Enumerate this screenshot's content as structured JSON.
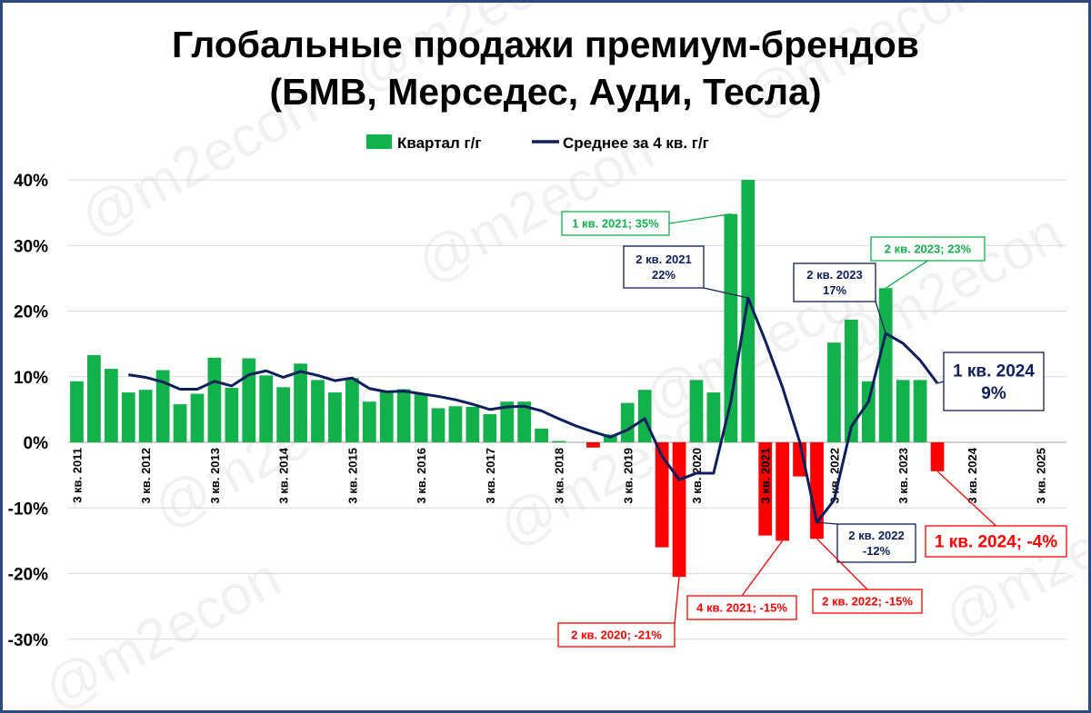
{
  "title_line1": "Глобальные продажи премиум-брендов",
  "title_line2": "(БМВ, Мерседес, Ауди, Тесла)",
  "watermark": "@m2econ",
  "colors": {
    "positive": "#12b14b",
    "negative": "#ff0000",
    "line": "#0d1f5c",
    "grid": "#d9d9d9",
    "frame": "#2e4a7d"
  },
  "chart_data": {
    "type": "bar",
    "ylim": [
      -30,
      40
    ],
    "yticks": [
      -30,
      -20,
      -10,
      0,
      10,
      20,
      30,
      40
    ],
    "ytick_labels": [
      "-30%",
      "-20%",
      "-10%",
      "0%",
      "10%",
      "20%",
      "30%",
      "40%"
    ],
    "grid": true,
    "legend_position": "top",
    "tick_labels": [
      {
        "index": 0,
        "label": "3 кв. 2011"
      },
      {
        "index": 4,
        "label": "3 кв. 2012"
      },
      {
        "index": 8,
        "label": "3 кв. 2013"
      },
      {
        "index": 12,
        "label": "3 кв. 2014"
      },
      {
        "index": 16,
        "label": "3 кв. 2015"
      },
      {
        "index": 20,
        "label": "3 кв. 2016"
      },
      {
        "index": 24,
        "label": "3 кв. 2017"
      },
      {
        "index": 28,
        "label": "3 кв. 2018"
      },
      {
        "index": 32,
        "label": "3 кв. 2019"
      },
      {
        "index": 36,
        "label": "3 кв. 2020"
      },
      {
        "index": 40,
        "label": "3 кв. 2021"
      },
      {
        "index": 44,
        "label": "3 кв. 2022"
      },
      {
        "index": 48,
        "label": "3 кв. 2023"
      },
      {
        "index": 52,
        "label": "3 кв. 2024"
      },
      {
        "index": 56,
        "label": "3 кв. 2025"
      }
    ],
    "n_slots": 58,
    "series": [
      {
        "name": "Квартал г/г",
        "kind": "bar",
        "values": [
          9.3,
          13.3,
          11.2,
          7.6,
          8.0,
          11.0,
          5.8,
          7.4,
          12.9,
          8.3,
          12.8,
          10.2,
          8.4,
          12.0,
          9.5,
          7.6,
          9.8,
          6.2,
          7.7,
          8.1,
          7.4,
          5.2,
          5.5,
          5.4,
          4.3,
          6.2,
          6.2,
          2.1,
          0.2,
          0.0,
          -0.8,
          1.2,
          6.0,
          8.0,
          -16.0,
          -20.5,
          9.5,
          7.6,
          34.8,
          40.0,
          -14.2,
          -15.0,
          -5.2,
          -14.7,
          15.2,
          18.7,
          9.3,
          23.5,
          9.5,
          9.5,
          -4.4,
          null,
          null,
          null,
          null,
          null,
          null,
          null
        ]
      },
      {
        "name": "Среднее за 4 кв. г/г",
        "kind": "line",
        "values": [
          null,
          null,
          null,
          10.3,
          9.9,
          9.2,
          8.1,
          8.1,
          9.3,
          8.6,
          10.3,
          10.9,
          9.9,
          10.8,
          10.2,
          9.4,
          9.8,
          8.2,
          7.7,
          7.8,
          7.4,
          7.0,
          6.5,
          5.8,
          5.0,
          5.4,
          5.5,
          4.8,
          3.6,
          2.5,
          1.6,
          0.8,
          1.9,
          3.6,
          -2.1,
          -5.7,
          -4.7,
          -4.7,
          6.2,
          22.0,
          15.5,
          8.4,
          0.1,
          -12.2,
          -8.8,
          2.4,
          6.2,
          16.6,
          15.1,
          12.5,
          9.0,
          null,
          null,
          null,
          null,
          null,
          null,
          null
        ]
      }
    ],
    "annotations": [
      {
        "index": 38,
        "series": 0,
        "text": "1 кв. 2021; 35%",
        "color": "positive"
      },
      {
        "index": 39,
        "series": 1,
        "text_lines": [
          "2 кв. 2021",
          "22%"
        ],
        "color": "line"
      },
      {
        "index": 47,
        "series": 0,
        "text": "2 кв. 2023; 23%",
        "color": "positive"
      },
      {
        "index": 47,
        "series": 1,
        "text_lines": [
          "2 кв. 2023",
          "17%"
        ],
        "color": "line"
      },
      {
        "index": 50,
        "series": 1,
        "text_lines": [
          "1 кв. 2024",
          "9%"
        ],
        "color": "line"
      },
      {
        "index": 43,
        "series": 1,
        "text_lines": [
          "2 кв. 2022",
          "-12%"
        ],
        "color": "line"
      },
      {
        "index": 35,
        "series": 0,
        "text": "2 кв. 2020; -21%",
        "color": "negative"
      },
      {
        "index": 41,
        "series": 0,
        "text": "4 кв. 2021; -15%",
        "color": "negative"
      },
      {
        "index": 43,
        "series": 0,
        "text": "2 кв. 2022; -15%",
        "color": "negative"
      },
      {
        "index": 50,
        "series": 0,
        "text": "1 кв. 2024; -4%",
        "color": "negative"
      }
    ]
  }
}
